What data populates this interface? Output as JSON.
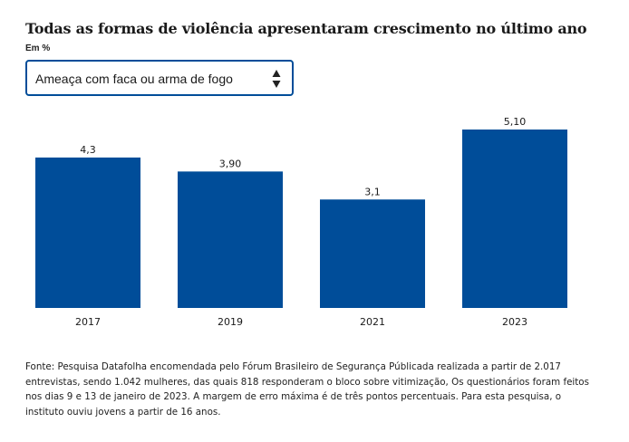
{
  "title": "Todas as formas de violência apresentaram crescimento no último ano",
  "unit_label": "Em %",
  "dropdown": {
    "selected": "Ameaça com faca ou arma de fogo",
    "arrows_icon": "sort-arrows-icon"
  },
  "colors": {
    "bar": "#004d99",
    "dropdown_border": "#004d99",
    "text": "#1a1a1a"
  },
  "chart_data": {
    "type": "bar",
    "title": "Todas as formas de violência apresentaram crescimento no último ano",
    "xlabel": "",
    "ylabel": "Em %",
    "categories": [
      "2017",
      "2019",
      "2021",
      "2023"
    ],
    "values": [
      4.3,
      3.9,
      3.1,
      5.1
    ],
    "value_labels": [
      "4,3",
      "3,90",
      "3,1",
      "5,10"
    ],
    "ylim": [
      0,
      5.1
    ],
    "grid": false,
    "legend": "none"
  },
  "source": "Fonte: Pesquisa Datafolha encomendada pelo Fórum Brasileiro de Segurança Públicada realizada a partir de 2.017 entrevistas, sendo 1.042 mulheres, das quais 818 responderam o bloco sobre vitimização, Os questionários foram feitos nos dias 9 e 13 de janeiro de 2023. A margem de erro máxima é de três pontos percentuais. Para esta pesquisa, o instituto ouviu jovens a partir de 16 anos."
}
